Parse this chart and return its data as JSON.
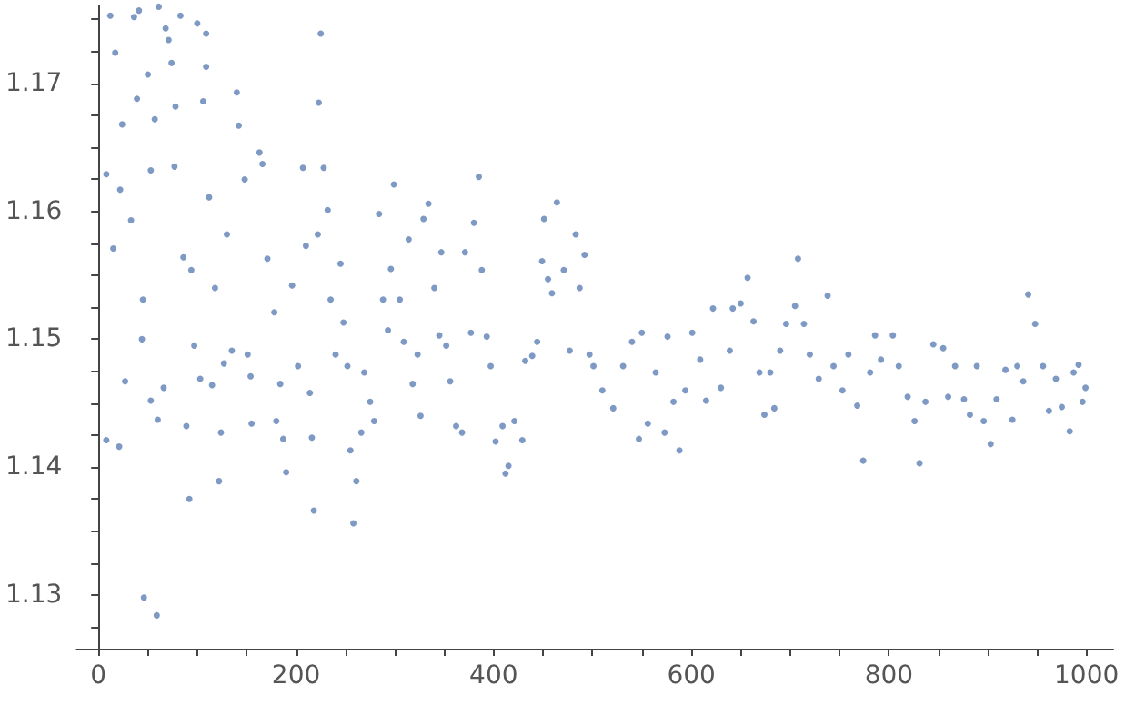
{
  "chart_data": {
    "type": "scatter",
    "marker": "circle",
    "grid": false,
    "xlim": [
      -22,
      1027
    ],
    "ylim": [
      1.1258,
      1.1761
    ],
    "xticks": [
      0,
      {
        "value": 50,
        "label": null
      },
      {
        "value": 100,
        "label": null
      },
      {
        "value": 150,
        "label": null
      },
      200,
      {
        "value": 250,
        "label": null
      },
      {
        "value": 300,
        "label": null
      },
      {
        "value": 350,
        "label": null
      },
      400,
      {
        "value": 450,
        "label": null
      },
      {
        "value": 500,
        "label": null
      },
      {
        "value": 550,
        "label": null
      },
      600,
      {
        "value": 650,
        "label": null
      },
      {
        "value": 700,
        "label": null
      },
      {
        "value": 750,
        "label": null
      },
      800,
      {
        "value": 850,
        "label": null
      },
      {
        "value": 900,
        "label": null
      },
      {
        "value": 950,
        "label": null
      },
      1000
    ],
    "yticks": [
      {
        "value": 1.1275,
        "label": null
      },
      1.13,
      {
        "value": 1.1325,
        "label": null
      },
      {
        "value": 1.135,
        "label": null
      },
      {
        "value": 1.1375,
        "label": null
      },
      1.14,
      {
        "value": 1.1425,
        "label": null
      },
      {
        "value": 1.145,
        "label": null
      },
      {
        "value": 1.1475,
        "label": null
      },
      1.15,
      {
        "value": 1.1525,
        "label": null
      },
      {
        "value": 1.155,
        "label": null
      },
      {
        "value": 1.1575,
        "label": null
      },
      1.16,
      {
        "value": 1.1625,
        "label": null
      },
      {
        "value": 1.165,
        "label": null
      },
      {
        "value": 1.1675,
        "label": null
      },
      1.17,
      {
        "value": 1.1725,
        "label": null
      },
      {
        "value": 1.175,
        "label": null
      }
    ],
    "series": [
      {
        "color": "#5e81b5",
        "x": [
          8,
          12,
          17,
          8,
          21,
          15,
          22,
          24,
          27,
          33,
          36,
          39,
          41,
          45,
          44,
          46,
          50,
          53,
          53,
          57,
          59,
          60,
          61,
          66,
          68,
          71,
          74,
          77,
          78,
          83,
          86,
          89,
          92,
          94,
          97,
          100,
          103,
          106,
          109,
          109,
          112,
          115,
          118,
          124,
          122,
          127,
          130,
          135,
          140,
          142,
          148,
          151,
          154,
          155,
          163,
          166,
          171,
          178,
          180,
          184,
          187,
          190,
          196,
          202,
          207,
          210,
          214,
          216,
          218,
          222,
          225,
          223,
          228,
          232,
          235,
          240,
          245,
          248,
          252,
          255,
          258,
          261,
          266,
          269,
          275,
          279,
          284,
          288,
          293,
          296,
          299,
          305,
          309,
          314,
          318,
          323,
          326,
          329,
          334,
          340,
          345,
          347,
          352,
          356,
          362,
          368,
          371,
          377,
          380,
          385,
          388,
          393,
          397,
          402,
          409,
          412,
          415,
          421,
          429,
          432,
          439,
          444,
          449,
          451,
          455,
          459,
          464,
          471,
          477,
          483,
          487,
          492,
          497,
          501,
          510,
          521,
          531,
          540,
          547,
          550,
          556,
          564,
          573,
          576,
          582,
          588,
          594,
          601,
          609,
          615,
          622,
          630,
          639,
          642,
          650,
          657,
          663,
          669,
          674,
          680,
          684,
          690,
          696,
          705,
          708,
          714,
          720,
          729,
          738,
          744,
          753,
          759,
          768,
          774,
          781,
          786,
          792,
          804,
          810,
          819,
          826,
          831,
          837,
          845,
          855,
          860,
          867,
          876,
          882,
          889,
          896,
          903,
          909,
          918,
          925,
          930,
          936,
          941,
          948,
          956,
          962,
          969,
          975,
          983,
          987,
          992,
          996,
          999
        ],
        "values": [
          1.1629,
          1.1753,
          1.1724,
          1.1421,
          1.1416,
          1.1571,
          1.1617,
          1.1668,
          1.1467,
          1.1593,
          1.1752,
          1.1688,
          1.1757,
          1.1531,
          1.15,
          1.1298,
          1.1707,
          1.1632,
          1.1452,
          1.1672,
          1.1284,
          1.1437,
          1.176,
          1.1462,
          1.1743,
          1.1734,
          1.1716,
          1.1635,
          1.1682,
          1.1753,
          1.1564,
          1.1432,
          1.1375,
          1.1554,
          1.1495,
          1.1747,
          1.1469,
          1.1686,
          1.1739,
          1.1713,
          1.1611,
          1.1464,
          1.154,
          1.1427,
          1.1389,
          1.1481,
          1.1582,
          1.1491,
          1.1693,
          1.1667,
          1.1625,
          1.1488,
          1.1471,
          1.1434,
          1.1646,
          1.1637,
          1.1563,
          1.1521,
          1.1436,
          1.1465,
          1.1422,
          1.1396,
          1.1542,
          1.1479,
          1.1634,
          1.1573,
          1.1458,
          1.1423,
          1.1366,
          1.1582,
          1.1739,
          1.1685,
          1.1634,
          1.1601,
          1.1531,
          1.1488,
          1.1559,
          1.1513,
          1.1479,
          1.1413,
          1.1356,
          1.1389,
          1.1427,
          1.1474,
          1.1451,
          1.1436,
          1.1598,
          1.1531,
          1.1507,
          1.1555,
          1.1621,
          1.1531,
          1.1498,
          1.1578,
          1.1465,
          1.1488,
          1.144,
          1.1594,
          1.1606,
          1.154,
          1.1503,
          1.1568,
          1.1495,
          1.1467,
          1.1432,
          1.1427,
          1.1568,
          1.1505,
          1.1591,
          1.1627,
          1.1554,
          1.1502,
          1.1479,
          1.142,
          1.1432,
          1.1395,
          1.1401,
          1.1436,
          1.1421,
          1.1483,
          1.1487,
          1.1498,
          1.1561,
          1.1594,
          1.1547,
          1.1536,
          1.1607,
          1.1554,
          1.1491,
          1.1582,
          1.154,
          1.1566,
          1.1488,
          1.1479,
          1.146,
          1.1446,
          1.1479,
          1.1498,
          1.1422,
          1.1505,
          1.1434,
          1.1474,
          1.1427,
          1.1502,
          1.1451,
          1.1413,
          1.146,
          1.1505,
          1.1484,
          1.1452,
          1.1524,
          1.1462,
          1.1491,
          1.1524,
          1.1528,
          1.1548,
          1.1514,
          1.1474,
          1.1441,
          1.1474,
          1.1446,
          1.1491,
          1.1512,
          1.1526,
          1.1563,
          1.1512,
          1.1488,
          1.1469,
          1.1534,
          1.1479,
          1.146,
          1.1488,
          1.1448,
          1.1405,
          1.1474,
          1.1503,
          1.1484,
          1.1503,
          1.1479,
          1.1455,
          1.1436,
          1.1403,
          1.1451,
          1.1496,
          1.1493,
          1.1455,
          1.1479,
          1.1453,
          1.1441,
          1.1479,
          1.1436,
          1.1418,
          1.1453,
          1.1476,
          1.1437,
          1.1479,
          1.1467,
          1.1535,
          1.1512,
          1.1479,
          1.1444,
          1.1469,
          1.1447,
          1.1428,
          1.1474,
          1.148,
          1.1451,
          1.1462
        ]
      }
    ]
  }
}
